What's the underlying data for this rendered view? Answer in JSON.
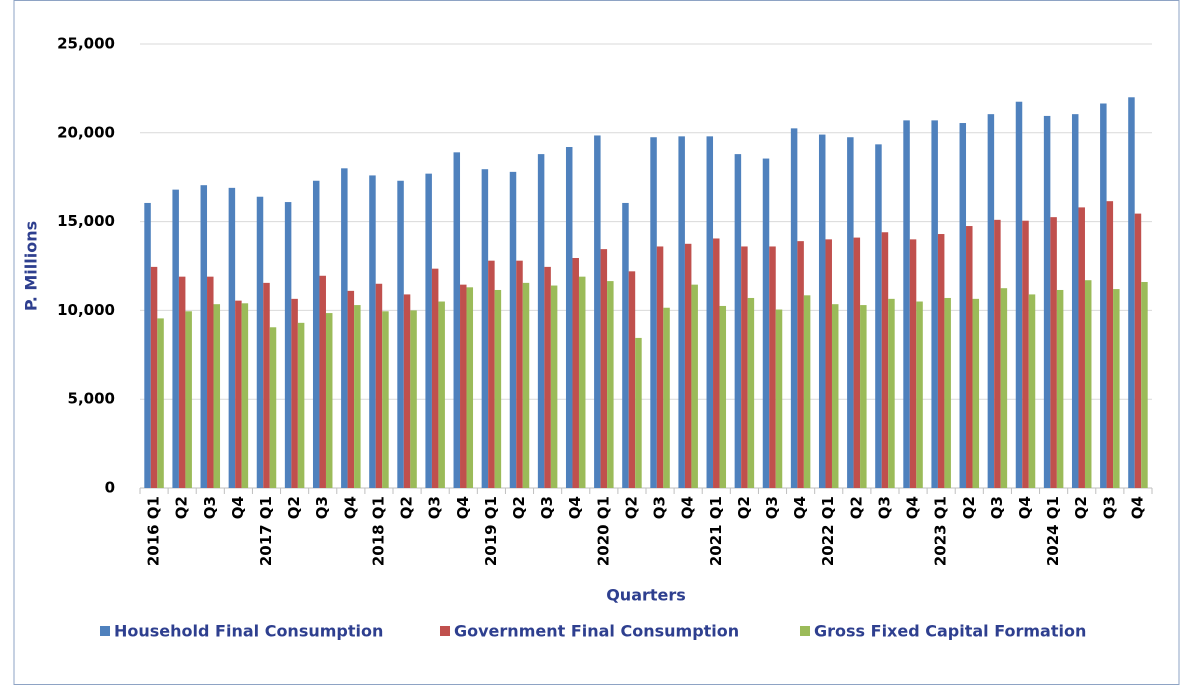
{
  "chart_data": {
    "type": "bar",
    "x_label": "Quarters",
    "y_label": "P. Millions",
    "categories": [
      "2016 Q1",
      "Q2",
      "Q3",
      "Q4",
      "2017 Q1",
      "Q2",
      "Q3",
      "Q4",
      "2018 Q1",
      "Q2",
      "Q3",
      "Q4",
      "2019 Q1",
      "Q2",
      "Q3",
      "Q4",
      "2020 Q1",
      "Q2",
      "Q3",
      "Q4",
      "2021 Q1",
      "Q2",
      "Q3",
      "Q4",
      "2022 Q1",
      "Q2",
      "Q3",
      "Q4",
      "2023 Q1",
      "Q2",
      "Q3",
      "Q4",
      "2024 Q1",
      "Q2",
      "Q3",
      "Q4"
    ],
    "series": [
      {
        "name": "Household Final Consumption",
        "color": "#4f81bd",
        "values": [
          16050,
          16800,
          17050,
          16900,
          16400,
          16100,
          17300,
          18000,
          17600,
          17300,
          17700,
          18900,
          17950,
          17800,
          18800,
          19200,
          19850,
          16050,
          19750,
          19800,
          19800,
          18800,
          18550,
          20250,
          19900,
          19750,
          19350,
          20700,
          20700,
          20550,
          21050,
          21750,
          20950,
          21050,
          21650,
          22000
        ]
      },
      {
        "name": "Government Final Consumption",
        "color": "#c0504d",
        "values": [
          12450,
          11900,
          11900,
          10550,
          11550,
          10650,
          11950,
          11100,
          11500,
          10900,
          12350,
          11450,
          12800,
          12800,
          12450,
          12950,
          13450,
          12200,
          13600,
          13750,
          14050,
          13600,
          13600,
          13900,
          14000,
          14100,
          14400,
          14000,
          14300,
          14750,
          15100,
          15050,
          15250,
          15800,
          16150,
          15450
        ]
      },
      {
        "name": "Gross Fixed Capital Formation",
        "color": "#9bbb59",
        "values": [
          9550,
          9950,
          10350,
          10400,
          9050,
          9300,
          9850,
          10300,
          9950,
          10000,
          10500,
          11300,
          11150,
          11550,
          11400,
          11900,
          11650,
          8450,
          10150,
          11450,
          10250,
          10700,
          10050,
          10850,
          10350,
          10300,
          10650,
          10500,
          10700,
          10650,
          11250,
          10900,
          11150,
          11700,
          11200,
          11600
        ]
      }
    ],
    "ylim": [
      0,
      25000
    ],
    "yticks": [
      0,
      {
        "value": 5000,
        "label": "5,000"
      },
      {
        "value": 10000,
        "label": "10,000"
      },
      {
        "value": 15000,
        "label": "15,000"
      },
      {
        "value": 20000,
        "label": "20,000"
      },
      {
        "value": 25000,
        "label": "25,000"
      }
    ],
    "grid": true,
    "legend": "bottom"
  }
}
